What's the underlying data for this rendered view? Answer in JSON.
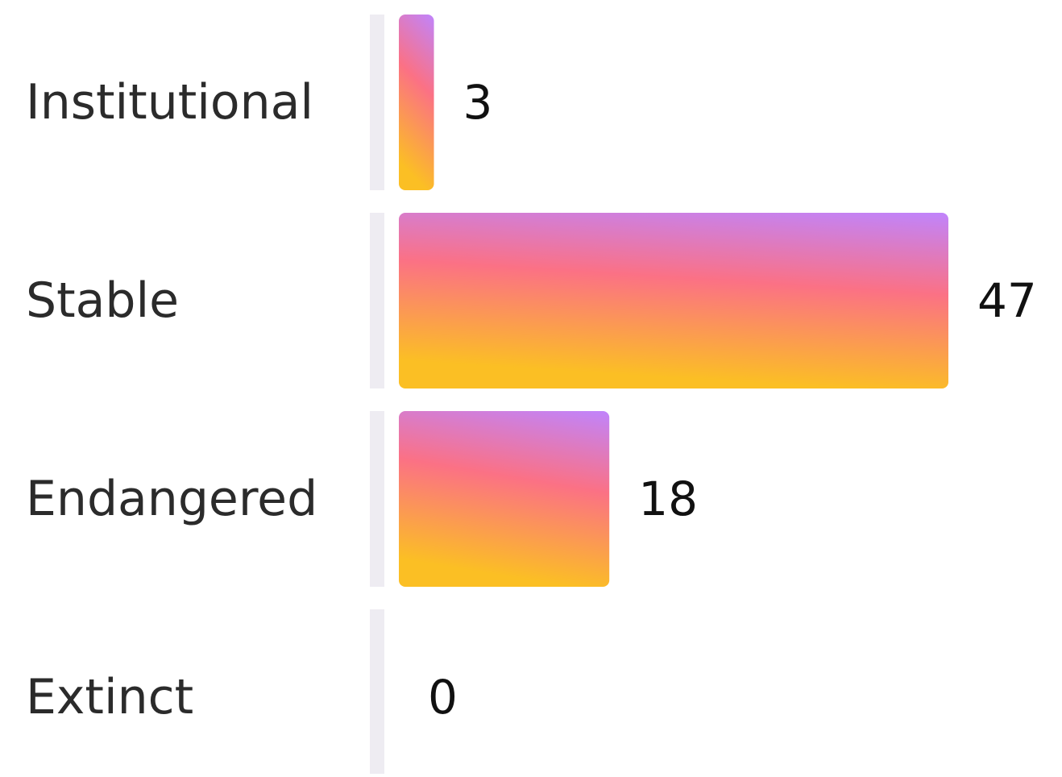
{
  "chart_data": {
    "type": "bar",
    "orientation": "horizontal",
    "categories": [
      "Institutional",
      "Stable",
      "Endangered",
      "Extinct"
    ],
    "values": [
      3,
      47,
      18,
      0
    ],
    "value_labels": [
      "3",
      "47",
      "18",
      "0"
    ],
    "xlim": [
      0,
      47
    ],
    "grid": false,
    "legend": "none",
    "colors": {
      "gradient_top": "#c084fc",
      "gradient_mid": "#fb7185",
      "gradient_bottom": "#fbbf24",
      "track": "#eeecf2",
      "label_text": "#2b2b2b",
      "value_text": "#111111"
    }
  }
}
